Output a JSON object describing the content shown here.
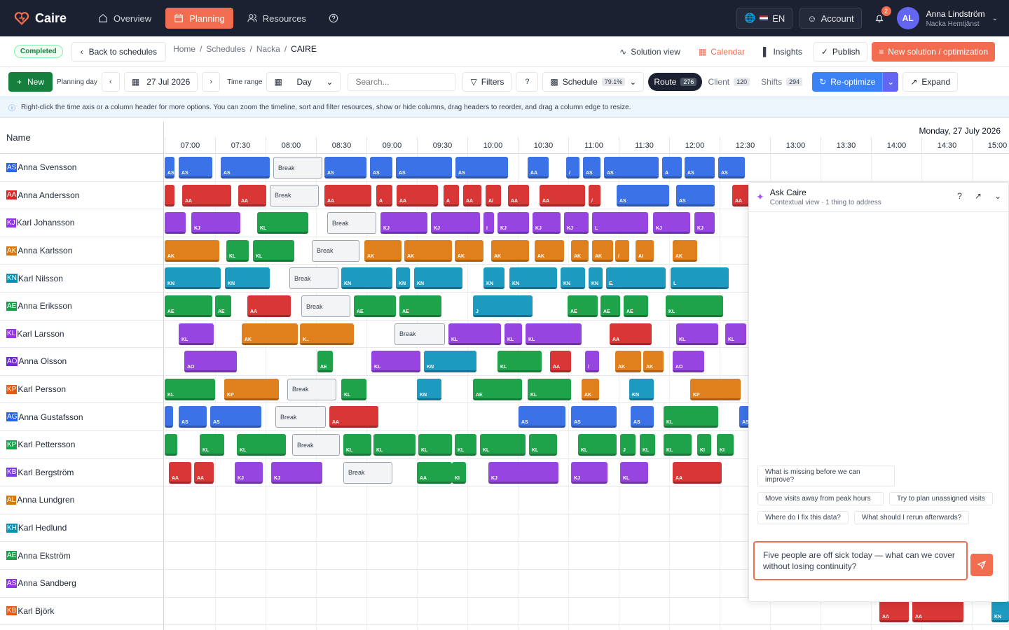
{
  "app": {
    "name": "Caire"
  },
  "nav": [
    {
      "label": "Overview",
      "icon": "home-icon",
      "active": false
    },
    {
      "label": "Planning",
      "icon": "calendar-icon",
      "active": true
    },
    {
      "label": "Resources",
      "icon": "users-icon",
      "active": false
    }
  ],
  "topbar": {
    "language": "EN",
    "account": "Account",
    "notifications": "2",
    "user_initials": "AL",
    "user_name": "Anna Lindström",
    "user_org": "Nacka Hemtjänst"
  },
  "subbar": {
    "status": "Completed",
    "back": "Back to schedules",
    "breadcrumbs": [
      "Home",
      "Schedules",
      "Nacka"
    ],
    "breadcrumb_current": "CAIRE",
    "solution_view": "Solution view",
    "calendar": "Calendar",
    "insights": "Insights",
    "publish": "Publish",
    "new_solution": "New solution / optimization"
  },
  "toolbar": {
    "new": "New",
    "planning_day": "Planning day",
    "date": "27 Jul 2026",
    "time_range": "Time range",
    "range_value": "Day",
    "search_placeholder": "Search...",
    "filters": "Filters",
    "schedule": "Schedule",
    "schedule_pct": "79.1%",
    "route": "Route",
    "route_count": "276",
    "client": "Client",
    "client_count": "120",
    "shifts": "Shifts",
    "shifts_count": "294",
    "reoptimize": "Re-optimize",
    "expand": "Expand"
  },
  "info": "Right-click the time axis or a column header for more options. You can zoom the timeline, sort and filter resources, show or hide columns, drag headers to reorder, and drag a column edge to resize.",
  "grid": {
    "name_header": "Name",
    "date_header": "Monday, 27 July 2026",
    "times": [
      "07:00",
      "07:30",
      "08:00",
      "08:30",
      "09:00",
      "09:30",
      "10:00",
      "10:30",
      "11:00",
      "11:30",
      "12:00",
      "12:30",
      "13:00",
      "13:30",
      "14:00",
      "14:30",
      "15:00"
    ],
    "break_label": "Break"
  },
  "people": [
    {
      "initials": "AS",
      "name": "Anna Svensson",
      "color": "#2563eb"
    },
    {
      "initials": "AA",
      "name": "Anna Andersson",
      "color": "#dc2626"
    },
    {
      "initials": "KJ",
      "name": "Karl Johansson",
      "color": "#9333ea"
    },
    {
      "initials": "AK",
      "name": "Anna Karlsson",
      "color": "#d97706"
    },
    {
      "initials": "KN",
      "name": "Karl Nilsson",
      "color": "#0891b2"
    },
    {
      "initials": "AE",
      "name": "Anna Eriksson",
      "color": "#16a34a"
    },
    {
      "initials": "KL",
      "name": "Karl Larsson",
      "color": "#9333ea"
    },
    {
      "initials": "AO",
      "name": "Anna Olsson",
      "color": "#6d28d9"
    },
    {
      "initials": "KP",
      "name": "Karl Persson",
      "color": "#ea580c"
    },
    {
      "initials": "AG",
      "name": "Anna Gustafsson",
      "color": "#2563eb"
    },
    {
      "initials": "KP",
      "name": "Karl Pettersson",
      "color": "#16a34a"
    },
    {
      "initials": "KB",
      "name": "Karl Bergström",
      "color": "#7c3aed"
    },
    {
      "initials": "AL",
      "name": "Anna Lundgren",
      "color": "#d97706"
    },
    {
      "initials": "KH",
      "name": "Karl Hedlund",
      "color": "#0891b2"
    },
    {
      "initials": "AE",
      "name": "Anna Ekström",
      "color": "#16a34a"
    },
    {
      "initials": "AS",
      "name": "Anna Sandberg",
      "color": "#9333ea"
    },
    {
      "initials": "KB",
      "name": "Karl Björk",
      "color": "#ea580c"
    }
  ],
  "schedule": [
    [
      [
        "b",
        0,
        14,
        "AS"
      ],
      [
        "b",
        20,
        68,
        "AS"
      ],
      [
        "b",
        80,
        150,
        "AS"
      ],
      [
        "k",
        155,
        225
      ],
      [
        "b",
        228,
        288,
        "AS"
      ],
      [
        "b",
        293,
        325,
        "AS"
      ],
      [
        "b",
        330,
        410,
        "AS"
      ],
      [
        "b",
        415,
        490,
        "AS"
      ],
      [
        "b",
        518,
        548,
        "AA"
      ],
      [
        "b",
        573,
        592,
        "/"
      ],
      [
        "b",
        597,
        622,
        "AS"
      ],
      [
        "b",
        627,
        705,
        "AS"
      ],
      [
        "b",
        710,
        738,
        "A"
      ],
      [
        "b",
        742,
        785,
        "AS"
      ],
      [
        "b",
        790,
        828,
        "AS"
      ]
    ],
    [
      [
        "r",
        0,
        14,
        ""
      ],
      [
        "r",
        25,
        95,
        "AA"
      ],
      [
        "r",
        105,
        145,
        "AA"
      ],
      [
        "k",
        150,
        220
      ],
      [
        "r",
        228,
        295,
        "AA"
      ],
      [
        "r",
        302,
        325,
        "A"
      ],
      [
        "r",
        331,
        390,
        "AA"
      ],
      [
        "r",
        398,
        420,
        "A"
      ],
      [
        "r",
        426,
        452,
        "AA"
      ],
      [
        "r",
        458,
        480,
        "A/"
      ],
      [
        "r",
        490,
        520,
        "AA"
      ],
      [
        "r",
        535,
        600,
        "AA"
      ],
      [
        "r",
        605,
        622,
        "/"
      ],
      [
        "b",
        645,
        720,
        "AS"
      ],
      [
        "b",
        730,
        785,
        "AS"
      ],
      [
        "r",
        810,
        835,
        "AA"
      ]
    ],
    [
      [
        "p",
        0,
        30,
        ""
      ],
      [
        "p",
        38,
        108,
        "KJ"
      ],
      [
        "g",
        132,
        205,
        "KL"
      ],
      [
        "k",
        232,
        302
      ],
      [
        "p",
        308,
        375,
        "KJ"
      ],
      [
        "p",
        380,
        450,
        "KJ"
      ],
      [
        "p",
        455,
        470,
        "I"
      ],
      [
        "p",
        475,
        520,
        "KJ"
      ],
      [
        "p",
        525,
        565,
        "KJ"
      ],
      [
        "p",
        570,
        605,
        "KJ"
      ],
      [
        "p",
        610,
        690,
        "L"
      ],
      [
        "p",
        697,
        750,
        "KJ"
      ],
      [
        "p",
        756,
        785,
        "KJ"
      ]
    ],
    [
      [
        "o",
        0,
        78,
        "AK"
      ],
      [
        "g",
        88,
        120,
        "KL"
      ],
      [
        "g",
        126,
        185,
        "KL"
      ],
      [
        "k",
        210,
        278
      ],
      [
        "o",
        285,
        338,
        "AK"
      ],
      [
        "o",
        342,
        410,
        "AK"
      ],
      [
        "o",
        414,
        455,
        "AK"
      ],
      [
        "o",
        466,
        520,
        "AK"
      ],
      [
        "o",
        528,
        570,
        "AK"
      ],
      [
        "o",
        580,
        605,
        "AK"
      ],
      [
        "o",
        610,
        640,
        "AK"
      ],
      [
        "o",
        643,
        663,
        "/"
      ],
      [
        "o",
        672,
        698,
        "AI"
      ],
      [
        "o",
        725,
        760,
        "AK"
      ]
    ],
    [
      [
        "c",
        0,
        80,
        "KN"
      ],
      [
        "c",
        86,
        150,
        "KN"
      ],
      [
        "k",
        178,
        248
      ],
      [
        "c",
        252,
        325,
        "KN"
      ],
      [
        "c",
        330,
        350,
        "KN"
      ],
      [
        "c",
        356,
        425,
        "KN"
      ],
      [
        "c",
        455,
        485,
        "KN"
      ],
      [
        "c",
        492,
        560,
        "KN"
      ],
      [
        "c",
        565,
        600,
        "KN"
      ],
      [
        "c",
        605,
        625,
        "KN"
      ],
      [
        "c",
        630,
        715,
        "E."
      ],
      [
        "c",
        722,
        805,
        "L"
      ]
    ],
    [
      [
        "g",
        0,
        68,
        "AE"
      ],
      [
        "g",
        72,
        95,
        "AE"
      ],
      [
        "r",
        118,
        180,
        "AA"
      ],
      [
        "k",
        195,
        265
      ],
      [
        "g",
        270,
        330,
        "AE"
      ],
      [
        "g",
        335,
        395,
        "AE"
      ],
      [
        "c",
        440,
        525,
        "J"
      ],
      [
        "g",
        575,
        618,
        "AE"
      ],
      [
        "g",
        622,
        650,
        "AE"
      ],
      [
        "g",
        655,
        690,
        "AE"
      ],
      [
        "g",
        715,
        797,
        "KL"
      ]
    ],
    [
      [
        "p",
        20,
        70,
        "KL"
      ],
      [
        "o",
        110,
        190,
        "AK"
      ],
      [
        "o",
        193,
        270,
        "K.."
      ],
      [
        "k",
        328,
        400
      ],
      [
        "p",
        405,
        480,
        "KL"
      ],
      [
        "p",
        485,
        510,
        "KL"
      ],
      [
        "p",
        515,
        595,
        "KL"
      ],
      [
        "r",
        635,
        695,
        "AA"
      ],
      [
        "p",
        730,
        790,
        "KL"
      ],
      [
        "p",
        800,
        830,
        "KL"
      ]
    ],
    [
      [
        "p",
        28,
        103,
        "AO"
      ],
      [
        "g",
        218,
        240,
        "AE"
      ],
      [
        "p",
        295,
        365,
        "KL"
      ],
      [
        "c",
        370,
        445,
        "KN"
      ],
      [
        "g",
        475,
        538,
        "KL"
      ],
      [
        "r",
        550,
        580,
        "AA"
      ],
      [
        "p",
        600,
        620,
        "/"
      ],
      [
        "o",
        643,
        680,
        "AK"
      ],
      [
        "o",
        683,
        712,
        "AK"
      ],
      [
        "p",
        725,
        770,
        "AO"
      ]
    ],
    [
      [
        "g",
        0,
        72,
        "KL"
      ],
      [
        "o",
        85,
        163,
        "KP"
      ],
      [
        "k",
        175,
        245
      ],
      [
        "g",
        252,
        288,
        "KL"
      ],
      [
        "c",
        360,
        395,
        "KN"
      ],
      [
        "g",
        440,
        510,
        "AE"
      ],
      [
        "g",
        518,
        580,
        "KL"
      ],
      [
        "o",
        595,
        620,
        "AK"
      ],
      [
        "c",
        663,
        698,
        "KN"
      ],
      [
        "o",
        750,
        822,
        "KP"
      ]
    ],
    [
      [
        "b",
        0,
        12,
        ""
      ],
      [
        "b",
        20,
        60,
        "AS"
      ],
      [
        "b",
        65,
        138,
        "AS"
      ],
      [
        "k",
        158,
        230
      ],
      [
        "r",
        235,
        305,
        "AA"
      ],
      [
        "b",
        505,
        572,
        "AS"
      ],
      [
        "b",
        580,
        645,
        "AS"
      ],
      [
        "b",
        665,
        698,
        "AS"
      ],
      [
        "g",
        712,
        790,
        "KL"
      ],
      [
        "b",
        820,
        835,
        "AS"
      ]
    ],
    [
      [
        "g",
        0,
        18,
        ""
      ],
      [
        "g",
        50,
        85,
        "KL"
      ],
      [
        "g",
        103,
        173,
        "KL"
      ],
      [
        "k",
        182,
        250
      ],
      [
        "g",
        255,
        295,
        "KL"
      ],
      [
        "g",
        298,
        358,
        "KL"
      ],
      [
        "g",
        362,
        410,
        "KL"
      ],
      [
        "g",
        414,
        445,
        "KL"
      ],
      [
        "g",
        450,
        515,
        "KL"
      ],
      [
        "g",
        520,
        560,
        "KL"
      ],
      [
        "g",
        590,
        645,
        "KL"
      ],
      [
        "g",
        650,
        672,
        "J"
      ],
      [
        "g",
        678,
        700,
        "KL"
      ],
      [
        "g",
        712,
        752,
        "KL"
      ],
      [
        "g",
        760,
        780,
        "KI"
      ],
      [
        "g",
        788,
        812,
        "KI"
      ]
    ],
    [
      [
        "r",
        6,
        38,
        "AA"
      ],
      [
        "r",
        42,
        70,
        "AA"
      ],
      [
        "p",
        100,
        140,
        "KJ"
      ],
      [
        "p",
        152,
        225,
        "KJ"
      ],
      [
        "k",
        255,
        325
      ],
      [
        "g",
        360,
        410,
        "AA"
      ],
      [
        "g",
        410,
        430,
        "KI"
      ],
      [
        "p",
        462,
        562,
        "KJ"
      ],
      [
        "p",
        580,
        632,
        "KJ"
      ],
      [
        "p",
        650,
        690,
        "KL"
      ],
      [
        "r",
        725,
        795,
        "AA"
      ]
    ],
    [],
    [],
    [],
    [],
    [
      [
        "r",
        1020,
        1062,
        "AA"
      ],
      [
        "r",
        1067,
        1140,
        "AA"
      ],
      [
        "c",
        1180,
        1205,
        "KN"
      ]
    ]
  ],
  "chat": {
    "title": "Ask Caire",
    "subtitle": "Contextual view · 1 thing to address",
    "suggestions": [
      "What is missing before we can improve?",
      "Move visits away from peak hours",
      "Try to plan unassigned visits",
      "Where do I fix this data?",
      "What should I rerun afterwards?"
    ],
    "input": "Five people are off sick today — what can we cover without losing continuity?"
  },
  "colors": {
    "b": "#3b72e8",
    "r": "#d93636",
    "p": "#9745e0",
    "o": "#e0801c",
    "c": "#1d9abf",
    "g": "#1fa34a",
    "accent": "#f26c4f"
  }
}
